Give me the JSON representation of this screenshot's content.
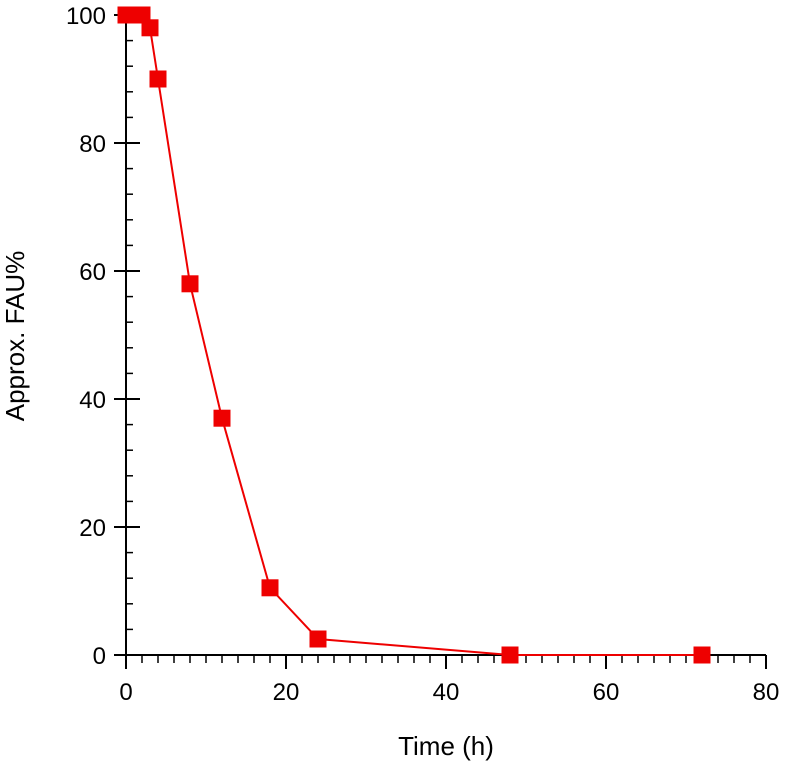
{
  "chart_data": {
    "type": "line",
    "title": "",
    "xlabel": "Time (h)",
    "ylabel": "Approx. FAU%",
    "xlim": [
      0,
      80
    ],
    "ylim": [
      0,
      100
    ],
    "x_ticks": [
      0,
      20,
      40,
      60,
      80
    ],
    "y_ticks": [
      0,
      20,
      40,
      60,
      80,
      100
    ],
    "x_minor_step": 2,
    "y_minor_step": 4,
    "grid": false,
    "legend": "none",
    "marker": "square",
    "color": "#ee0000",
    "series": [
      {
        "x": [
          0,
          1,
          2,
          3,
          4,
          8,
          12,
          18,
          24,
          48,
          72
        ],
        "y": [
          100,
          100,
          100,
          98,
          90,
          58,
          37,
          10.5,
          2.5,
          0,
          0
        ]
      }
    ]
  }
}
